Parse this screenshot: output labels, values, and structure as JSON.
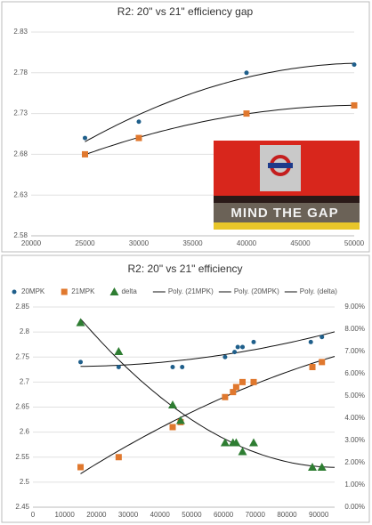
{
  "chart_data": [
    {
      "type": "scatter",
      "title": "R2: 20\" vs 21\" efficiency gap",
      "image_text": "MIND THE GAP",
      "x": [
        25000,
        30000,
        40000,
        50000
      ],
      "series": [
        {
          "color": "#1f5f8b",
          "marker": "circle",
          "values": [
            2.7,
            2.72,
            2.78,
            2.79
          ]
        },
        {
          "color": "#e0782e",
          "marker": "square",
          "values": [
            2.68,
            2.7,
            2.73,
            2.74
          ]
        }
      ],
      "xlim": [
        20000,
        50000
      ],
      "xticks": [
        20000,
        25000,
        30000,
        35000,
        40000,
        45000,
        50000
      ],
      "ylim": [
        2.58,
        2.83
      ],
      "yticks": [
        2.58,
        2.63,
        2.68,
        2.73,
        2.78,
        2.83
      ],
      "grid": true
    },
    {
      "type": "scatter",
      "title": "R2: 20\" vs 21\" efficiency",
      "series": [
        {
          "name": "20MPK",
          "color": "#1f5f8b",
          "marker": "circle",
          "trendline": "Poly. (20MPK)",
          "x": [
            15000,
            27000,
            44000,
            47000,
            60500,
            63500,
            64500,
            66000,
            69500,
            87500,
            91000
          ],
          "values": [
            2.74,
            2.73,
            2.73,
            2.73,
            2.75,
            2.76,
            2.77,
            2.77,
            2.78,
            2.78,
            2.79
          ]
        },
        {
          "name": "21MPK",
          "color": "#e0782e",
          "marker": "square",
          "trendline": "Poly. (21MPK)",
          "x": [
            15000,
            27000,
            44000,
            46500,
            60500,
            63000,
            64000,
            66000,
            69500,
            88000,
            91000
          ],
          "values": [
            2.53,
            2.55,
            2.61,
            2.62,
            2.67,
            2.68,
            2.69,
            2.7,
            2.7,
            2.73,
            2.74
          ]
        },
        {
          "name": "delta",
          "color": "#2e7d32",
          "marker": "triangle",
          "axis": "y2",
          "trendline": "Poly. (delta)",
          "x": [
            15000,
            27000,
            44000,
            46500,
            60500,
            63000,
            64000,
            66000,
            69500,
            88000,
            91000
          ],
          "values": [
            8.3,
            7.0,
            4.6,
            3.9,
            2.9,
            2.9,
            2.9,
            2.5,
            2.9,
            1.8,
            1.8
          ]
        }
      ],
      "xlim": [
        0,
        95000
      ],
      "xticks": [
        0,
        10000,
        20000,
        30000,
        40000,
        50000,
        60000,
        70000,
        80000,
        90000
      ],
      "ylim": [
        2.45,
        2.85
      ],
      "yticks": [
        2.45,
        2.5,
        2.55,
        2.6,
        2.65,
        2.7,
        2.75,
        2.8,
        2.85
      ],
      "y2lim": [
        0,
        9
      ],
      "y2ticks": [
        {
          "value": 0,
          "label": "0.00%"
        },
        {
          "value": 1,
          "label": "1.00%"
        },
        {
          "value": 2,
          "label": "2.00%"
        },
        {
          "value": 3,
          "label": "3.00%"
        },
        {
          "value": 4,
          "label": "4.00%"
        },
        {
          "value": 5,
          "label": "5.00%"
        },
        {
          "value": 6,
          "label": "6.00%"
        },
        {
          "value": 7,
          "label": "7.00%"
        },
        {
          "value": 8,
          "label": "8.00%"
        },
        {
          "value": 9,
          "label": "9.00%"
        }
      ],
      "grid": true,
      "legend": "top"
    }
  ]
}
